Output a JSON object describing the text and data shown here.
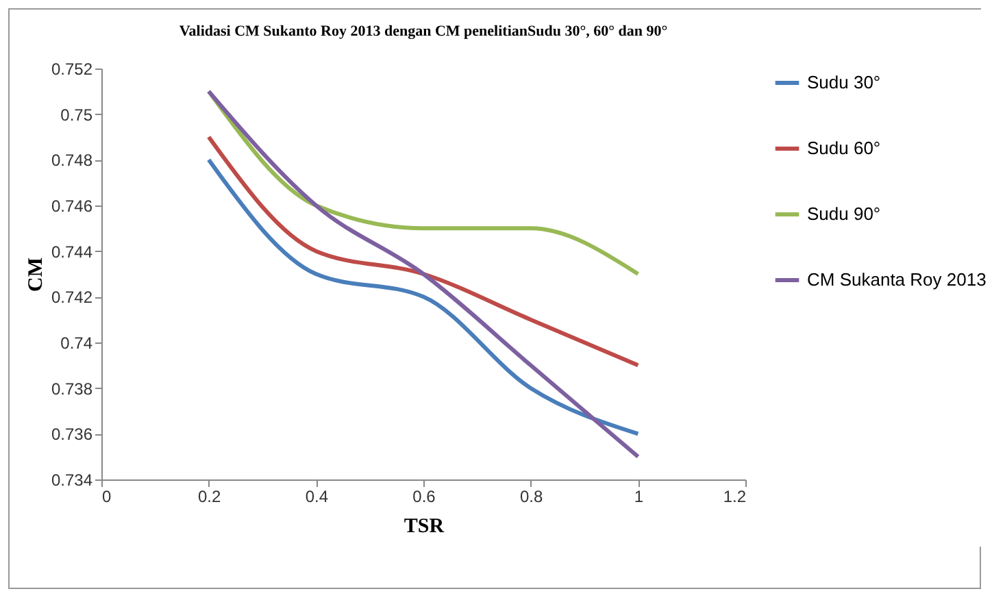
{
  "chart_data": {
    "type": "line",
    "title": "Validasi CM Sukanto Roy 2013  dengan CM  penelitianSudu 30°, 60° dan 90°",
    "xlabel": "TSR",
    "ylabel": "CM",
    "x": [
      0.2,
      0.4,
      0.6,
      0.8,
      1.0
    ],
    "series": [
      {
        "name": "Sudu 30°",
        "color": "#4a7ebb",
        "values": [
          0.748,
          0.743,
          0.742,
          0.738,
          0.736
        ]
      },
      {
        "name": "Sudu 60°",
        "color": "#be4b48",
        "values": [
          0.749,
          0.744,
          0.743,
          0.741,
          0.739
        ]
      },
      {
        "name": "Sudu 90°",
        "color": "#98b954",
        "values": [
          0.751,
          0.746,
          0.745,
          0.745,
          0.743
        ]
      },
      {
        "name": "CM Sukanta Roy 2013",
        "color": "#7d60a0",
        "values": [
          0.751,
          0.746,
          0.743,
          0.739,
          0.735
        ]
      }
    ],
    "xlim": [
      0,
      1.2
    ],
    "xticks": [
      0,
      0.2,
      0.4,
      0.6,
      0.8,
      1,
      1.2
    ],
    "ylim": [
      0.734,
      0.752
    ],
    "yticks": [
      0.734,
      0.736,
      0.738,
      0.74,
      0.742,
      0.744,
      0.746,
      0.748,
      0.75,
      0.752
    ],
    "grid": false,
    "legend": "right",
    "marker": "none",
    "line_style": "solid"
  }
}
